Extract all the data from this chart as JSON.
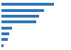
{
  "values": [
    820000,
    660000,
    580000,
    540000,
    165000,
    127000,
    100000,
    38000
  ],
  "bar_color": "#2e75b6",
  "background_color": "#ffffff",
  "grid_color": "#d9d9d9",
  "xlim": [
    0,
    950000
  ],
  "bar_height": 0.5
}
